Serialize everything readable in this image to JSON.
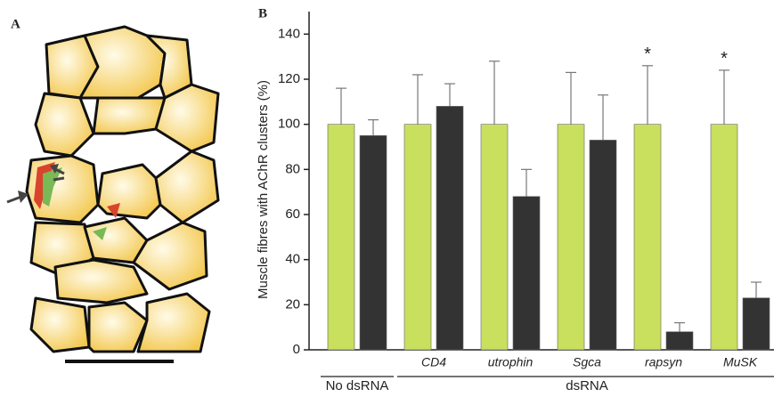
{
  "panel_labels": [
    "A",
    "B"
  ],
  "chart_data": {
    "type": "bar",
    "ylabel": "Muscle fibres with AChR clusters (%)",
    "categories": [
      null,
      "CD4",
      "utrophin",
      "Sgca",
      "rapsyn",
      "MuSK"
    ],
    "group_labels": [
      "No dsRNA",
      "dsRNA"
    ],
    "series": [
      {
        "color": "#c9df5e",
        "values": [
          100,
          100,
          100,
          100,
          100,
          100
        ],
        "errors": [
          16,
          22,
          28,
          23,
          26,
          24
        ]
      },
      {
        "color": "#333333",
        "values": [
          95,
          108,
          68,
          93,
          8,
          23
        ],
        "errors": [
          7,
          10,
          12,
          20,
          4,
          7
        ]
      }
    ],
    "annotations": [
      {
        "text": "*",
        "category": "rapsyn"
      },
      {
        "text": "*",
        "category": "MuSK"
      }
    ],
    "ylim": [
      0,
      150
    ],
    "yticks": [
      0,
      20,
      40,
      60,
      80,
      100,
      120,
      140
    ],
    "grid": false
  }
}
